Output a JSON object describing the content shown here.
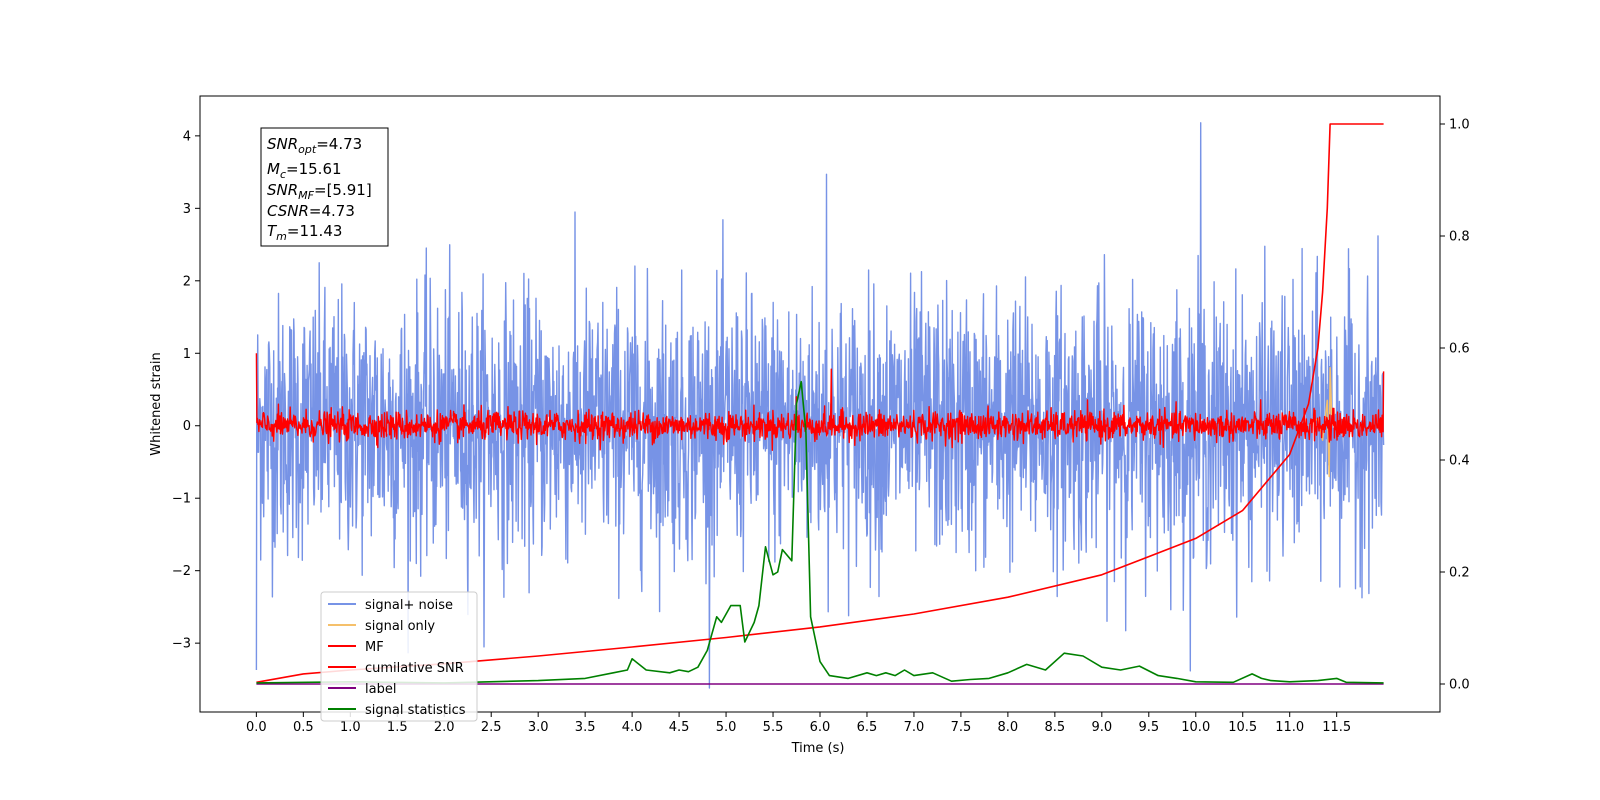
{
  "chart_data": {
    "type": "line",
    "xlabel": "Time (s)",
    "ylabel": "Whitened strain",
    "y2label": "",
    "xlim": [
      -0.6,
      12.6
    ],
    "ylim": [
      -3.95,
      4.55
    ],
    "y2lim": [
      -0.05,
      1.05
    ],
    "x_ticks": [
      0.0,
      0.5,
      1.0,
      1.5,
      2.0,
      2.5,
      3.0,
      3.5,
      4.0,
      4.5,
      5.0,
      5.5,
      6.0,
      6.5,
      7.0,
      7.5,
      8.0,
      8.5,
      9.0,
      9.5,
      10.0,
      10.5,
      11.0,
      11.5
    ],
    "x_tick_labels": [
      "0.0",
      "0.5",
      "1.0",
      "1.5",
      "2.0",
      "2.5",
      "3.0",
      "3.5",
      "4.0",
      "4.5",
      "5.0",
      "5.5",
      "6.0",
      "6.5",
      "7.0",
      "7.5",
      "8.0",
      "8.5",
      "9.0",
      "9.5",
      "10.0",
      "10.5",
      "11.0",
      "11.5"
    ],
    "y_ticks": [
      -3,
      -2,
      -1,
      0,
      1,
      2,
      3,
      4
    ],
    "y_tick_labels": [
      "−3",
      "−2",
      "−1",
      "0",
      "1",
      "2",
      "3",
      "4"
    ],
    "y2_ticks": [
      0.0,
      0.2,
      0.4,
      0.6,
      0.8,
      1.0
    ],
    "y2_tick_labels": [
      "0.0",
      "0.2",
      "0.4",
      "0.6",
      "0.8",
      "1.0"
    ],
    "legend_position": "lower-left",
    "grid": false,
    "annotation_box": {
      "lines": [
        {
          "main": "SNR",
          "sub": "opt",
          "rest": "=4.73"
        },
        {
          "main": "M",
          "sub": "c",
          "rest": "=15.61"
        },
        {
          "main": "SNR",
          "sub": "MF",
          "rest": "=[5.91]"
        },
        {
          "main": "CSNR",
          "sub": "",
          "rest": "=4.73"
        },
        {
          "main": "T",
          "sub": "m",
          "rest": "=11.43"
        }
      ]
    },
    "series": [
      {
        "name": "signal+ noise",
        "color": "#7793e6",
        "axis": "left",
        "kind": "noise",
        "noise_sigma": 0.9,
        "peak_values": [
          {
            "x": 10.05,
            "y": 4.18
          },
          {
            "x": 6.07,
            "y": 3.47
          },
          {
            "x": 0.0,
            "y": -3.37
          }
        ]
      },
      {
        "name": "signal only",
        "color": "#f5c06b",
        "axis": "left",
        "kind": "chirp",
        "points": [
          [
            11.2,
            0.0
          ],
          [
            11.3,
            0.1
          ],
          [
            11.35,
            -0.2
          ],
          [
            11.4,
            0.35
          ],
          [
            11.42,
            -0.7
          ],
          [
            11.43,
            0.8
          ],
          [
            11.45,
            0.0
          ]
        ]
      },
      {
        "name": "MF",
        "color": "#ff0000",
        "axis": "left",
        "kind": "noise",
        "noise_sigma": 0.1,
        "peak_values": [
          {
            "x": 0.0,
            "y": 1.0
          },
          {
            "x": 6.12,
            "y": 0.78
          },
          {
            "x": 5.75,
            "y": 0.4
          },
          {
            "x": 12.0,
            "y": 0.75
          }
        ]
      },
      {
        "name": "cumilative SNR",
        "color": "#ff0000",
        "axis": "right",
        "points": [
          [
            0.0,
            0.003
          ],
          [
            0.5,
            0.018
          ],
          [
            1.0,
            0.025
          ],
          [
            2.0,
            0.036
          ],
          [
            3.0,
            0.05
          ],
          [
            4.0,
            0.066
          ],
          [
            5.0,
            0.083
          ],
          [
            6.0,
            0.102
          ],
          [
            7.0,
            0.125
          ],
          [
            8.0,
            0.155
          ],
          [
            9.0,
            0.195
          ],
          [
            10.0,
            0.26
          ],
          [
            10.5,
            0.31
          ],
          [
            11.0,
            0.41
          ],
          [
            11.2,
            0.5
          ],
          [
            11.3,
            0.6
          ],
          [
            11.35,
            0.7
          ],
          [
            11.4,
            0.85
          ],
          [
            11.43,
            1.0
          ],
          [
            12.0,
            1.0
          ]
        ]
      },
      {
        "name": "label",
        "color": "#800080",
        "axis": "right",
        "points": [
          [
            0.0,
            0.0
          ],
          [
            12.0,
            0.0
          ]
        ]
      },
      {
        "name": "signal statistics",
        "color": "#008000",
        "axis": "right",
        "points": [
          [
            0.0,
            0.002
          ],
          [
            1.0,
            0.004
          ],
          [
            2.0,
            0.002
          ],
          [
            3.0,
            0.006
          ],
          [
            3.5,
            0.01
          ],
          [
            3.8,
            0.02
          ],
          [
            3.95,
            0.025
          ],
          [
            4.0,
            0.045
          ],
          [
            4.15,
            0.025
          ],
          [
            4.4,
            0.02
          ],
          [
            4.5,
            0.025
          ],
          [
            4.6,
            0.022
          ],
          [
            4.7,
            0.03
          ],
          [
            4.8,
            0.06
          ],
          [
            4.9,
            0.12
          ],
          [
            4.95,
            0.11
          ],
          [
            5.05,
            0.14
          ],
          [
            5.15,
            0.14
          ],
          [
            5.2,
            0.075
          ],
          [
            5.3,
            0.11
          ],
          [
            5.35,
            0.14
          ],
          [
            5.42,
            0.245
          ],
          [
            5.5,
            0.195
          ],
          [
            5.55,
            0.2
          ],
          [
            5.6,
            0.24
          ],
          [
            5.7,
            0.22
          ],
          [
            5.75,
            0.5
          ],
          [
            5.8,
            0.54
          ],
          [
            5.85,
            0.45
          ],
          [
            5.9,
            0.12
          ],
          [
            6.0,
            0.04
          ],
          [
            6.1,
            0.015
          ],
          [
            6.3,
            0.01
          ],
          [
            6.5,
            0.02
          ],
          [
            6.6,
            0.015
          ],
          [
            6.7,
            0.02
          ],
          [
            6.8,
            0.015
          ],
          [
            6.9,
            0.025
          ],
          [
            7.0,
            0.015
          ],
          [
            7.2,
            0.02
          ],
          [
            7.4,
            0.005
          ],
          [
            7.6,
            0.008
          ],
          [
            7.8,
            0.01
          ],
          [
            8.0,
            0.02
          ],
          [
            8.2,
            0.035
          ],
          [
            8.4,
            0.025
          ],
          [
            8.6,
            0.055
          ],
          [
            8.8,
            0.05
          ],
          [
            9.0,
            0.03
          ],
          [
            9.2,
            0.025
          ],
          [
            9.4,
            0.032
          ],
          [
            9.6,
            0.015
          ],
          [
            9.8,
            0.01
          ],
          [
            10.0,
            0.004
          ],
          [
            10.4,
            0.003
          ],
          [
            10.6,
            0.018
          ],
          [
            10.7,
            0.01
          ],
          [
            10.8,
            0.006
          ],
          [
            11.0,
            0.004
          ],
          [
            11.3,
            0.006
          ],
          [
            11.5,
            0.01
          ],
          [
            11.6,
            0.003
          ],
          [
            12.0,
            0.002
          ]
        ]
      }
    ]
  }
}
